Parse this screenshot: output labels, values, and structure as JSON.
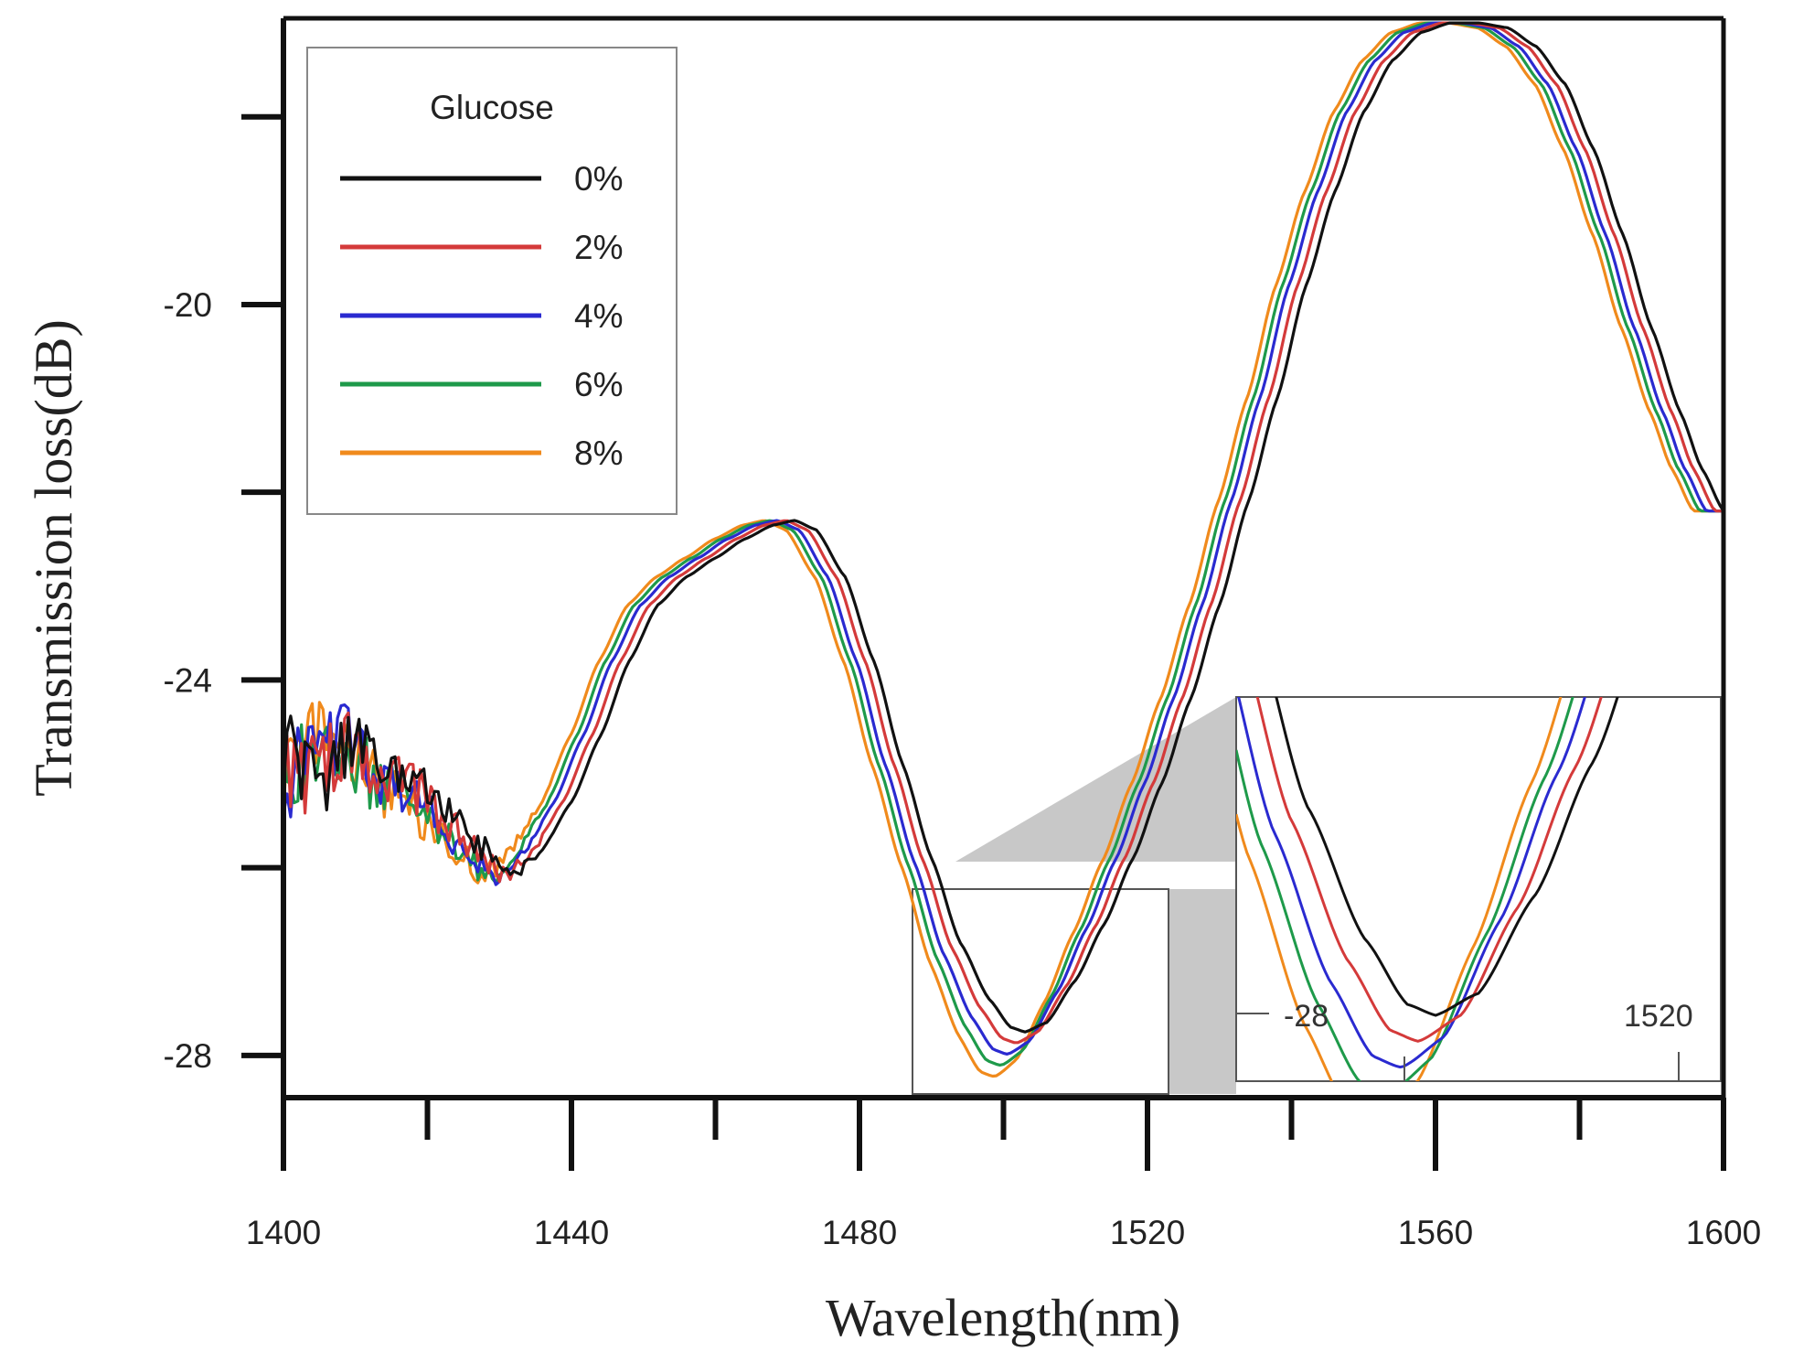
{
  "chart_data": {
    "type": "line",
    "xlabel": "Wavelength(nm)",
    "ylabel": "Transmission loss(dB)",
    "xlim": [
      1400,
      1600
    ],
    "ylim": [
      -28.45,
      -16.95
    ],
    "x_ticks": [
      1400,
      1440,
      1480,
      1520,
      1560,
      1600
    ],
    "x_tick_labels": [
      "1400",
      "1440",
      "1480",
      "1520",
      "1560",
      "1600"
    ],
    "x_minor_ticks": [
      1420,
      1460,
      1500,
      1540,
      1580
    ],
    "y_ticks": [
      -20,
      -24,
      -28
    ],
    "y_tick_labels": [
      "-20",
      "-24",
      "-28"
    ],
    "y_minor_ticks": [
      -18,
      -22,
      -26
    ],
    "legend": {
      "title": "Glucose",
      "position": "top-left"
    },
    "series": [
      {
        "name": "0%",
        "color": "#111111",
        "shift": 0.0
      },
      {
        "name": "2%",
        "color": "#d43a3a",
        "shift": -1.2
      },
      {
        "name": "4%",
        "color": "#2a2ad0",
        "shift": -2.4
      },
      {
        "name": "6%",
        "color": "#1e9a4a",
        "shift": -3.3
      },
      {
        "name": "8%",
        "color": "#f08a1c",
        "shift": -4.2
      }
    ],
    "reference_curve_0pct": [
      [
        1400,
        -24.9
      ],
      [
        1405,
        -25.0
      ],
      [
        1410,
        -24.6
      ],
      [
        1415,
        -25.0
      ],
      [
        1420,
        -25.2
      ],
      [
        1425,
        -25.6
      ],
      [
        1428,
        -25.8
      ],
      [
        1432,
        -26.1
      ],
      [
        1436,
        -25.8
      ],
      [
        1440,
        -25.3
      ],
      [
        1444,
        -24.6
      ],
      [
        1448,
        -23.8
      ],
      [
        1452,
        -23.2
      ],
      [
        1456,
        -22.9
      ],
      [
        1460,
        -22.7
      ],
      [
        1464,
        -22.5
      ],
      [
        1468,
        -22.35
      ],
      [
        1471,
        -22.3
      ],
      [
        1474,
        -22.4
      ],
      [
        1478,
        -22.9
      ],
      [
        1482,
        -23.8
      ],
      [
        1486,
        -24.9
      ],
      [
        1490,
        -25.9
      ],
      [
        1494,
        -26.8
      ],
      [
        1498,
        -27.4
      ],
      [
        1501,
        -27.7
      ],
      [
        1503,
        -27.75
      ],
      [
        1506,
        -27.65
      ],
      [
        1510,
        -27.2
      ],
      [
        1514,
        -26.6
      ],
      [
        1518,
        -25.9
      ],
      [
        1522,
        -25.1
      ],
      [
        1526,
        -24.2
      ],
      [
        1530,
        -23.2
      ],
      [
        1534,
        -22.1
      ],
      [
        1538,
        -21.0
      ],
      [
        1542,
        -19.8
      ],
      [
        1546,
        -18.8
      ],
      [
        1550,
        -17.95
      ],
      [
        1554,
        -17.4
      ],
      [
        1558,
        -17.1
      ],
      [
        1562,
        -17.0
      ],
      [
        1566,
        -17.0
      ],
      [
        1570,
        -17.05
      ],
      [
        1574,
        -17.25
      ],
      [
        1578,
        -17.65
      ],
      [
        1582,
        -18.35
      ],
      [
        1586,
        -19.25
      ],
      [
        1590,
        -20.25
      ],
      [
        1594,
        -21.15
      ],
      [
        1597,
        -21.75
      ],
      [
        1600,
        -22.2
      ]
    ],
    "inset": {
      "description": "zoom of dip near 1500 nm",
      "labels": [
        "-28",
        "1520"
      ],
      "source_region_x": [
        1487,
        1523
      ],
      "source_region_y": [
        -28.45,
        -26.3
      ]
    }
  }
}
